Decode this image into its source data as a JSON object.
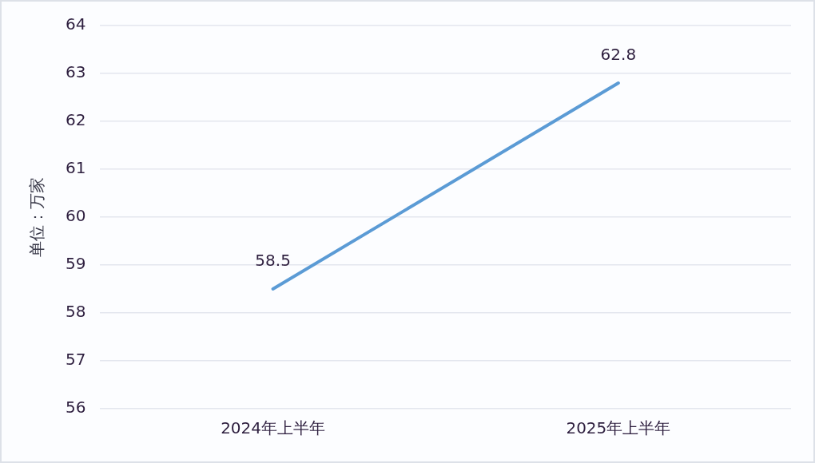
{
  "chart_data": {
    "type": "line",
    "ylabel": "单位：万家",
    "categories": [
      "2024年上半年",
      "2025年上半年"
    ],
    "series": [
      {
        "color": "#5b9bd5",
        "values": [
          58.5,
          62.8
        ]
      }
    ],
    "ylim": [
      56,
      64
    ],
    "yticks": [
      56,
      57,
      58,
      59,
      60,
      61,
      62,
      63,
      64
    ],
    "grid": "y",
    "data_labels": true,
    "marker": "none",
    "line_style": "solid"
  }
}
